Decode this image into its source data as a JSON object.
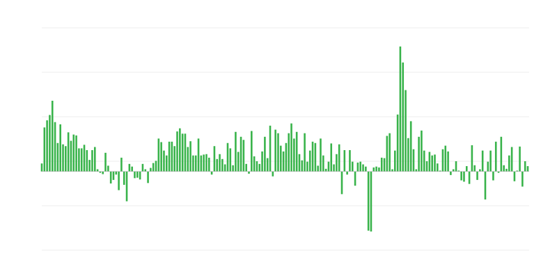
{
  "chart_data": {
    "type": "bar",
    "title": "",
    "xlabel": "",
    "ylabel": "",
    "grid": true,
    "legend": "none",
    "ylim": [
      -1.77,
      3.23
    ],
    "colors": {
      "bar": "#38b34a",
      "grid": "#ececec",
      "baseline": "#b0b0b0"
    },
    "values": [
      0.18,
      0.99,
      1.15,
      1.27,
      1.59,
      1.11,
      0.64,
      1.06,
      0.61,
      0.57,
      0.88,
      0.69,
      0.83,
      0.81,
      0.52,
      0.52,
      0.6,
      0.48,
      0.26,
      0.48,
      0.55,
      0.05,
      -0.03,
      -0.06,
      0.42,
      0.13,
      -0.27,
      -0.19,
      -0.07,
      -0.42,
      0.31,
      -0.3,
      -0.67,
      0.17,
      0.11,
      -0.15,
      -0.14,
      -0.18,
      0.17,
      0.05,
      -0.26,
      0.08,
      0.19,
      0.24,
      0.74,
      0.66,
      0.47,
      0.36,
      0.67,
      0.67,
      0.57,
      0.9,
      0.97,
      0.85,
      0.85,
      0.55,
      0.68,
      0.36,
      0.36,
      0.74,
      0.36,
      0.38,
      0.39,
      0.31,
      -0.07,
      0.57,
      0.28,
      0.39,
      0.28,
      0.16,
      0.64,
      0.52,
      0.14,
      0.89,
      0.44,
      0.78,
      0.71,
      0.17,
      -0.05,
      0.91,
      0.34,
      0.23,
      0.17,
      0.45,
      0.78,
      0.3,
      1.03,
      -0.11,
      0.94,
      0.86,
      0.58,
      0.45,
      0.64,
      0.86,
      1.08,
      0.74,
      0.89,
      0.39,
      0.25,
      0.86,
      0.22,
      0.47,
      0.67,
      0.64,
      0.13,
      0.74,
      0.36,
      0.06,
      0.22,
      0.63,
      0.16,
      0.39,
      0.61,
      -0.51,
      0.48,
      -0.07,
      0.48,
      0.22,
      -0.32,
      0.2,
      0.22,
      0.16,
      0.11,
      -1.33,
      -1.35,
      0.09,
      0.11,
      0.09,
      0.31,
      0.3,
      0.8,
      0.86,
      0.05,
      0.47,
      1.28,
      2.81,
      2.45,
      1.83,
      0.75,
      1.13,
      0.5,
      0.05,
      0.78,
      0.92,
      0.47,
      0.23,
      0.44,
      0.36,
      0.38,
      0.18,
      0.02,
      0.5,
      0.58,
      0.45,
      -0.08,
      0.05,
      0.23,
      0.02,
      -0.2,
      -0.23,
      0.12,
      -0.28,
      0.59,
      0.14,
      -0.19,
      0.05,
      0.47,
      -0.63,
      0.22,
      0.47,
      -0.2,
      0.67,
      -0.03,
      0.78,
      0.14,
      0.06,
      0.36,
      0.55,
      -0.22,
      0.02,
      0.56,
      -0.34,
      0.23,
      0.12
    ]
  }
}
